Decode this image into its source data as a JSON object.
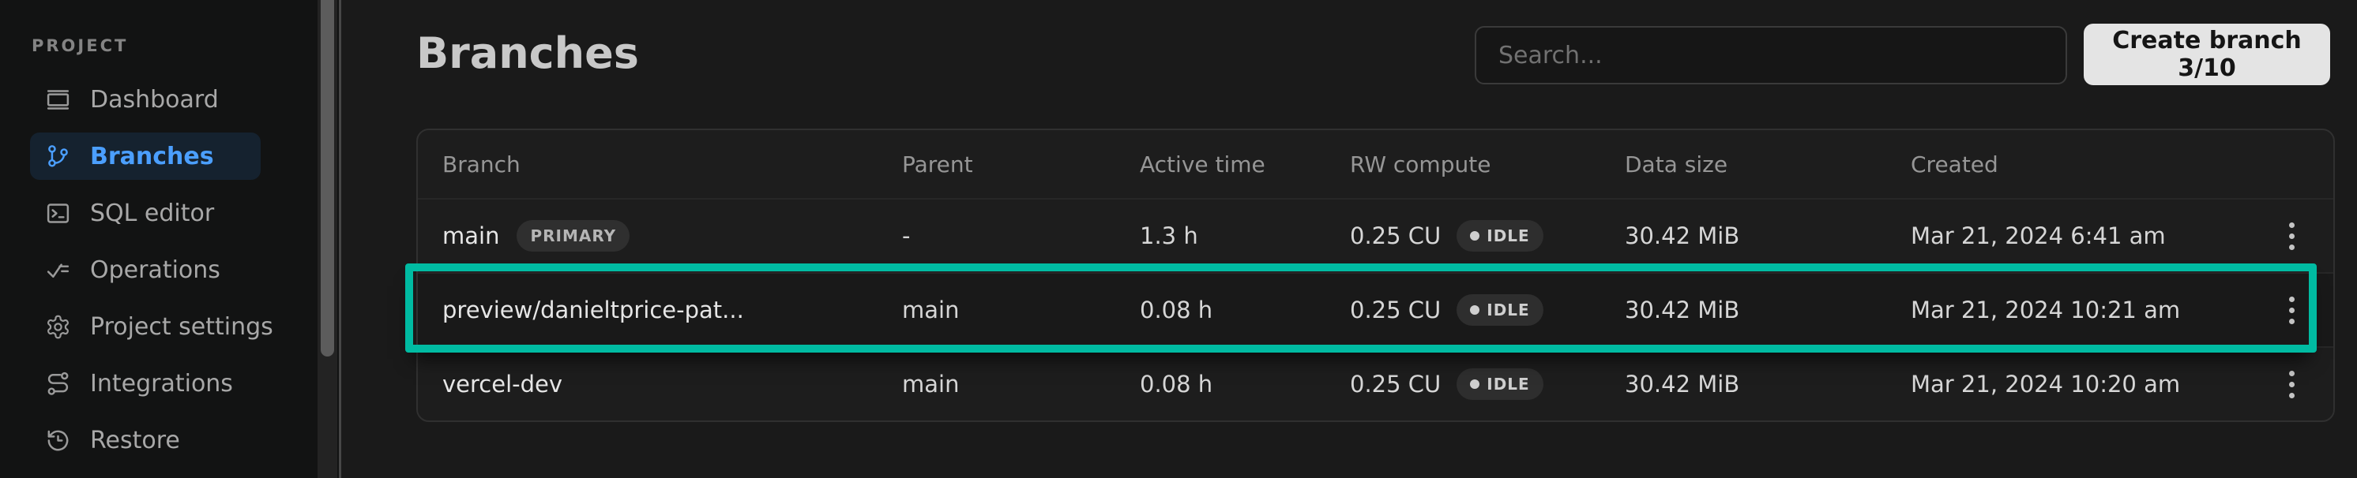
{
  "colors": {
    "highlight_teal": "#00bba2",
    "active_blue": "#4b9fff"
  },
  "sidebar": {
    "section_label": "PROJECT",
    "items": [
      {
        "label": "Dashboard",
        "icon": "dashboard-icon",
        "active": false
      },
      {
        "label": "Branches",
        "icon": "git-branch-icon",
        "active": true
      },
      {
        "label": "SQL editor",
        "icon": "terminal-icon",
        "active": false
      },
      {
        "label": "Operations",
        "icon": "checklist-icon",
        "active": false
      },
      {
        "label": "Project settings",
        "icon": "gear-icon",
        "active": false
      },
      {
        "label": "Integrations",
        "icon": "integrations-icon",
        "active": false
      },
      {
        "label": "Restore",
        "icon": "history-clock-icon",
        "active": false
      }
    ]
  },
  "header": {
    "title": "Branches",
    "search_placeholder": "Search...",
    "create_button_label": "Create branch 3/10"
  },
  "table": {
    "columns": [
      "Branch",
      "Parent",
      "Active time",
      "RW compute",
      "Data size",
      "Created"
    ],
    "row_menu_icon": "kebab-menu-icon",
    "rows": [
      {
        "branch": "main",
        "badge": "PRIMARY",
        "parent": "-",
        "active_time": "1.3 h",
        "rw_compute": "0.25 CU",
        "compute_status": "IDLE",
        "data_size": "30.42 MiB",
        "created": "Mar 21, 2024 6:41 am",
        "highlighted": false
      },
      {
        "branch": "preview/danieltprice-pat...",
        "badge": "",
        "parent": "main",
        "active_time": "0.08 h",
        "rw_compute": "0.25 CU",
        "compute_status": "IDLE",
        "data_size": "30.42 MiB",
        "created": "Mar 21, 2024 10:21 am",
        "highlighted": true
      },
      {
        "branch": "vercel-dev",
        "badge": "",
        "parent": "main",
        "active_time": "0.08 h",
        "rw_compute": "0.25 CU",
        "compute_status": "IDLE",
        "data_size": "30.42 MiB",
        "created": "Mar 21, 2024 10:20 am",
        "highlighted": false
      }
    ]
  }
}
